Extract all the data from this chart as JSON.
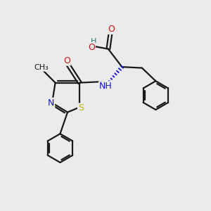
{
  "bg_color": "#ebebeb",
  "bond_color": "#1a1a1a",
  "N_color": "#1414cc",
  "O_color": "#cc1414",
  "S_color": "#b8b800",
  "H_color": "#2a7a7a",
  "stereo_bond_color": "#1414cc",
  "figsize": [
    3.0,
    3.0
  ],
  "dpi": 100,
  "xlim": [
    0,
    10
  ],
  "ylim": [
    0,
    10
  ]
}
